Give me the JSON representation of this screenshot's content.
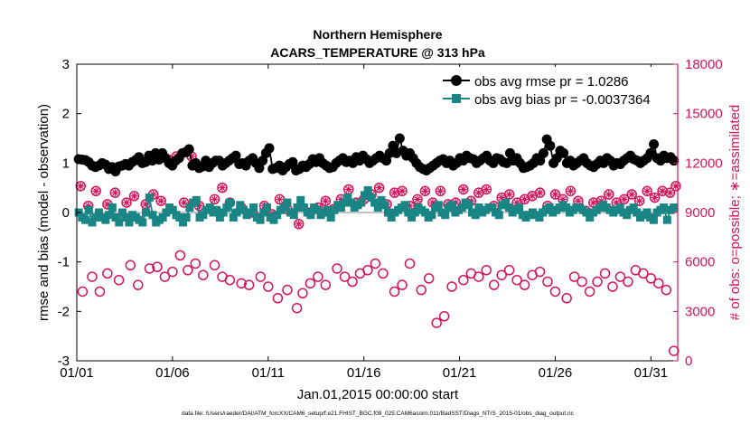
{
  "chart_data": {
    "type": "scatter",
    "title_line1": "Northern Hemisphere",
    "title_line2": "ACARS_TEMPERATURE @ 313 hPa",
    "xlabel": "Jan.01,2015 00:00:00 start",
    "ylabel_left": "rmse and bias (model - observation)",
    "ylabel_right": "# of obs: o=possible; ∗=assimilated",
    "footer": "data file: /Users/raeder/DAI/ATM_forcXX/CAM6_setup/f.e21.FHIST_BGC.f09_025.CAM6assim.011/BadSST/Diags_NTrS_2015-01/obs_diag_output.nc",
    "xlim": [
      0,
      31.4
    ],
    "ylim_left": [
      -3,
      3
    ],
    "ylim_right": [
      0,
      18000
    ],
    "x_ticks": [
      0,
      5,
      10,
      15,
      20,
      25,
      30
    ],
    "x_tick_labels": [
      "01/01",
      "01/06",
      "01/11",
      "01/16",
      "01/21",
      "01/26",
      "01/31"
    ],
    "y_left_ticks": [
      -3,
      -2,
      -1,
      0,
      1,
      2,
      3
    ],
    "y_left_tick_labels": [
      "-3",
      "-2",
      "-1",
      "0",
      "1",
      "2",
      "3"
    ],
    "y_right_ticks": [
      0,
      3000,
      6000,
      9000,
      12000,
      15000,
      18000
    ],
    "y_right_tick_labels": [
      "0",
      "3000",
      "6000",
      "9000",
      "12000",
      "15000",
      "18000"
    ],
    "legend_position": "top-right",
    "series": [
      {
        "name": "obs avg rmse pr = 1.0286",
        "color": "#000000",
        "marker": "circle",
        "axis": "left",
        "values": [
          1.08,
          1.07,
          1.06,
          1.02,
          0.95,
          0.92,
          0.95,
          1.0,
          0.97,
          0.88,
          0.92,
          0.83,
          0.93,
          0.95,
          0.98,
          0.95,
          1.02,
          1.06,
          1.12,
          1.0,
          1.02,
          1.15,
          1.05,
          1.2,
          1.07,
          1.2,
          1.1,
          1.0,
          0.95,
          1.05,
          1.1,
          1.2,
          1.22,
          1.28,
          0.95,
          1.0,
          0.9,
          0.93,
          1.05,
          0.92,
          1.0,
          1.05,
          1.05,
          0.95,
          1.0,
          1.05,
          1.1,
          1.15,
          0.98,
          1.0,
          0.95,
          1.05,
          1.1,
          1.0,
          0.9,
          1.05,
          1.2,
          1.3,
          0.88,
          0.9,
          0.95,
          0.85,
          0.92,
          0.98,
          1.02,
          0.85,
          0.88,
          0.95,
          0.92,
          0.98,
          1.08,
          1.02,
          1.1,
          1.0,
          0.95,
          0.9,
          0.92,
          1.0,
          1.05,
          1.1,
          1.02,
          1.05,
          1.0,
          1.12,
          1.05,
          1.15,
          1.08,
          1.0,
          1.05,
          1.1,
          1.15,
          1.1,
          1.05,
          1.2,
          1.35,
          1.2,
          1.5,
          1.25,
          1.15,
          1.2,
          1.1,
          1.0,
          0.92,
          0.88,
          0.85,
          0.9,
          0.95,
          1.0,
          1.05,
          1.08,
          1.0,
          1.05,
          0.95,
          1.0,
          1.1,
          1.05,
          1.15,
          1.1,
          1.08,
          1.0,
          1.05,
          1.1,
          1.15,
          1.05,
          1.0,
          1.1,
          1.08,
          1.02,
          1.0,
          1.2,
          1.05,
          1.1,
          1.0,
          0.9,
          0.92,
          0.95,
          1.0,
          1.1,
          1.05,
          1.2,
          1.48,
          1.35,
          1.0,
          1.1,
          1.25,
          1.2,
          1.0,
          1.05,
          0.95,
          1.0,
          1.05,
          1.1,
          1.0,
          0.95,
          0.92,
          0.98,
          1.05,
          1.0,
          1.1,
          1.05,
          0.95,
          1.0,
          0.98,
          1.05,
          1.1,
          1.15,
          1.08,
          1.05,
          1.0,
          1.05,
          1.1,
          1.2,
          1.38,
          1.1,
          1.05,
          1.15,
          1.1,
          1.12,
          1.05
        ]
      },
      {
        "name": "obs avg bias pr = -0.0037364",
        "color": "#1a8585",
        "marker": "square",
        "axis": "left",
        "values": [
          0.0,
          -0.1,
          -0.15,
          0.05,
          -0.2,
          -0.1,
          0.0,
          -0.1,
          -0.15,
          -0.05,
          0.1,
          -0.1,
          -0.2,
          0.0,
          -0.1,
          -0.2,
          -0.05,
          -0.1,
          -0.15,
          -0.2,
          0.0,
          0.3,
          -0.05,
          -0.2,
          -0.15,
          -0.1,
          0.0,
          0.1,
          0.05,
          -0.05,
          -0.1,
          -0.2,
          -0.1,
          0.1,
          0.2,
          0.25,
          -0.1,
          -0.05,
          0.05,
          0.1,
          0.0,
          0.05,
          -0.1,
          0.0,
          0.1,
          0.2,
          -0.1,
          0.0,
          0.15,
          0.05,
          -0.05,
          0.0,
          0.1,
          -0.1,
          -0.15,
          0.0,
          0.1,
          -0.1,
          -0.15,
          -0.05,
          0.05,
          0.1,
          0.2,
          0.0,
          -0.05,
          0.1,
          0.25,
          0.1,
          0.0,
          -0.05,
          0.1,
          0.05,
          -0.05,
          0.0,
          0.05,
          -0.1,
          0.05,
          0.15,
          0.1,
          0.2,
          0.3,
          0.2,
          0.1,
          0.15,
          0.2,
          0.35,
          0.45,
          0.3,
          0.2,
          0.1,
          0.25,
          0.15,
          0.0,
          -0.1,
          0.0,
          0.05,
          0.1,
          0.15,
          0.0,
          -0.1,
          0.0,
          0.1,
          0.05,
          0.0,
          -0.1,
          -0.05,
          0.1,
          0.15,
          0.0,
          -0.05,
          0.1,
          0.15,
          0.0,
          0.05,
          0.1,
          0.2,
          0.15,
          0.0,
          -0.05,
          0.1,
          0.0,
          0.05,
          0.1,
          0.1,
          0.0,
          -0.05,
          0.15,
          0.2,
          0.1,
          0.0,
          0.05,
          0.1,
          -0.05,
          -0.1,
          -0.05,
          0.0,
          -0.05,
          -0.1,
          0.0,
          0.05,
          0.1,
          0.0,
          0.05,
          0.1,
          0.15,
          0.1,
          0.0,
          0.05,
          0.1,
          0.1,
          0.05,
          0.0,
          -0.1,
          0.0,
          0.05,
          0.1,
          0.15,
          0.1,
          0.05,
          0.0,
          0.05,
          0.1,
          0.0,
          -0.05,
          0.05,
          0.1,
          0.0,
          -0.1,
          -0.05,
          0.0,
          -0.1,
          -0.15,
          0.0,
          0.05,
          0.1,
          -0.15,
          0.05,
          0.1
        ]
      }
    ],
    "obs_counts": [
      {
        "name": "possible",
        "color": "#d4145a",
        "marker": "circle-open",
        "axis": "right",
        "x": [
          0.3,
          0.8,
          1.2,
          1.6,
          2.2,
          2.8,
          3.2,
          3.8,
          4.2,
          4.6,
          5.0,
          5.4,
          5.8,
          6.2,
          6.6,
          7.2,
          7.6,
          8.0,
          8.6,
          9.0,
          9.6,
          10.0,
          10.5,
          11.0,
          11.5,
          11.8,
          12.2,
          12.6,
          13.0,
          13.6,
          14.0,
          14.4,
          14.8,
          15.2,
          15.6,
          16.0,
          16.6,
          17.0,
          17.4,
          18.0,
          18.4,
          18.8,
          19.2,
          19.6,
          20.2,
          20.6,
          21.0,
          21.4,
          21.8,
          22.2,
          22.6,
          23.0,
          23.4,
          23.8,
          24.2,
          24.6,
          25.0,
          25.6,
          26.0,
          26.4,
          26.8,
          27.2,
          27.6,
          28.0,
          28.4,
          28.8,
          29.2,
          29.6,
          30.0,
          30.4,
          30.8,
          31.2
        ],
        "values": [
          4200,
          5100,
          4200,
          5300,
          4900,
          5800,
          4600,
          5600,
          5700,
          5100,
          5400,
          6400,
          5500,
          5900,
          5200,
          5800,
          5100,
          4900,
          4700,
          4600,
          5100,
          4500,
          3800,
          4300,
          3200,
          4100,
          4700,
          5100,
          4600,
          5600,
          5100,
          4800,
          5300,
          5500,
          5900,
          5300,
          4200,
          4600,
          5900,
          4300,
          5000,
          2300,
          2700,
          4500,
          4900,
          5300,
          5100,
          5500,
          4600,
          5200,
          5500,
          4900,
          4600,
          5200,
          5400,
          4800,
          4200,
          3800,
          5100,
          4800,
          4200,
          4800,
          5300,
          4500,
          5100,
          4800,
          5500,
          5300,
          5000,
          4700,
          4300,
          600
        ]
      },
      {
        "name": "assimilated",
        "color": "#d4145a",
        "marker": "star",
        "axis": "right",
        "x": [
          0.2,
          0.6,
          1.0,
          1.6,
          2.0,
          2.6,
          3.0,
          3.6,
          4.0,
          4.4,
          4.8,
          5.2,
          5.6,
          6.0,
          6.4,
          6.8,
          7.2,
          7.6,
          8.0,
          8.6,
          9.2,
          9.8,
          10.2,
          10.6,
          11.0,
          11.6,
          12.2,
          12.6,
          13.0,
          13.4,
          13.8,
          14.2,
          14.6,
          15.0,
          15.4,
          15.8,
          16.2,
          16.6,
          17.0,
          17.4,
          17.8,
          18.2,
          18.6,
          19.0,
          19.4,
          19.8,
          20.2,
          20.6,
          21.0,
          21.4,
          21.8,
          22.2,
          22.6,
          23.0,
          23.4,
          23.8,
          24.2,
          24.6,
          25.0,
          25.4,
          25.8,
          26.2,
          26.6,
          27.0,
          27.4,
          27.8,
          28.2,
          28.6,
          29.0,
          29.4,
          29.8,
          30.2,
          30.6,
          31.0,
          31.3
        ],
        "values": [
          10600,
          9400,
          10300,
          9500,
          10200,
          9600,
          10000,
          9500,
          10100,
          9700,
          12200,
          12400,
          9600,
          12400,
          9400,
          12000,
          9800,
          10500,
          9600,
          9300,
          9000,
          9400,
          8900,
          9800,
          9200,
          8300,
          9000,
          9300,
          9700,
          9200,
          9800,
          10400,
          9600,
          9800,
          10100,
          10500,
          9500,
          10200,
          10300,
          9400,
          9800,
          10300,
          9600,
          10300,
          9500,
          9600,
          10400,
          9700,
          10200,
          10400,
          9400,
          9900,
          10100,
          9600,
          9800,
          10000,
          10200,
          9400,
          10100,
          9800,
          10300,
          9700,
          9100,
          9600,
          9700,
          10100,
          9600,
          9800,
          10100,
          9700,
          10300,
          9900,
          10300,
          10200,
          10600
        ]
      }
    ]
  }
}
